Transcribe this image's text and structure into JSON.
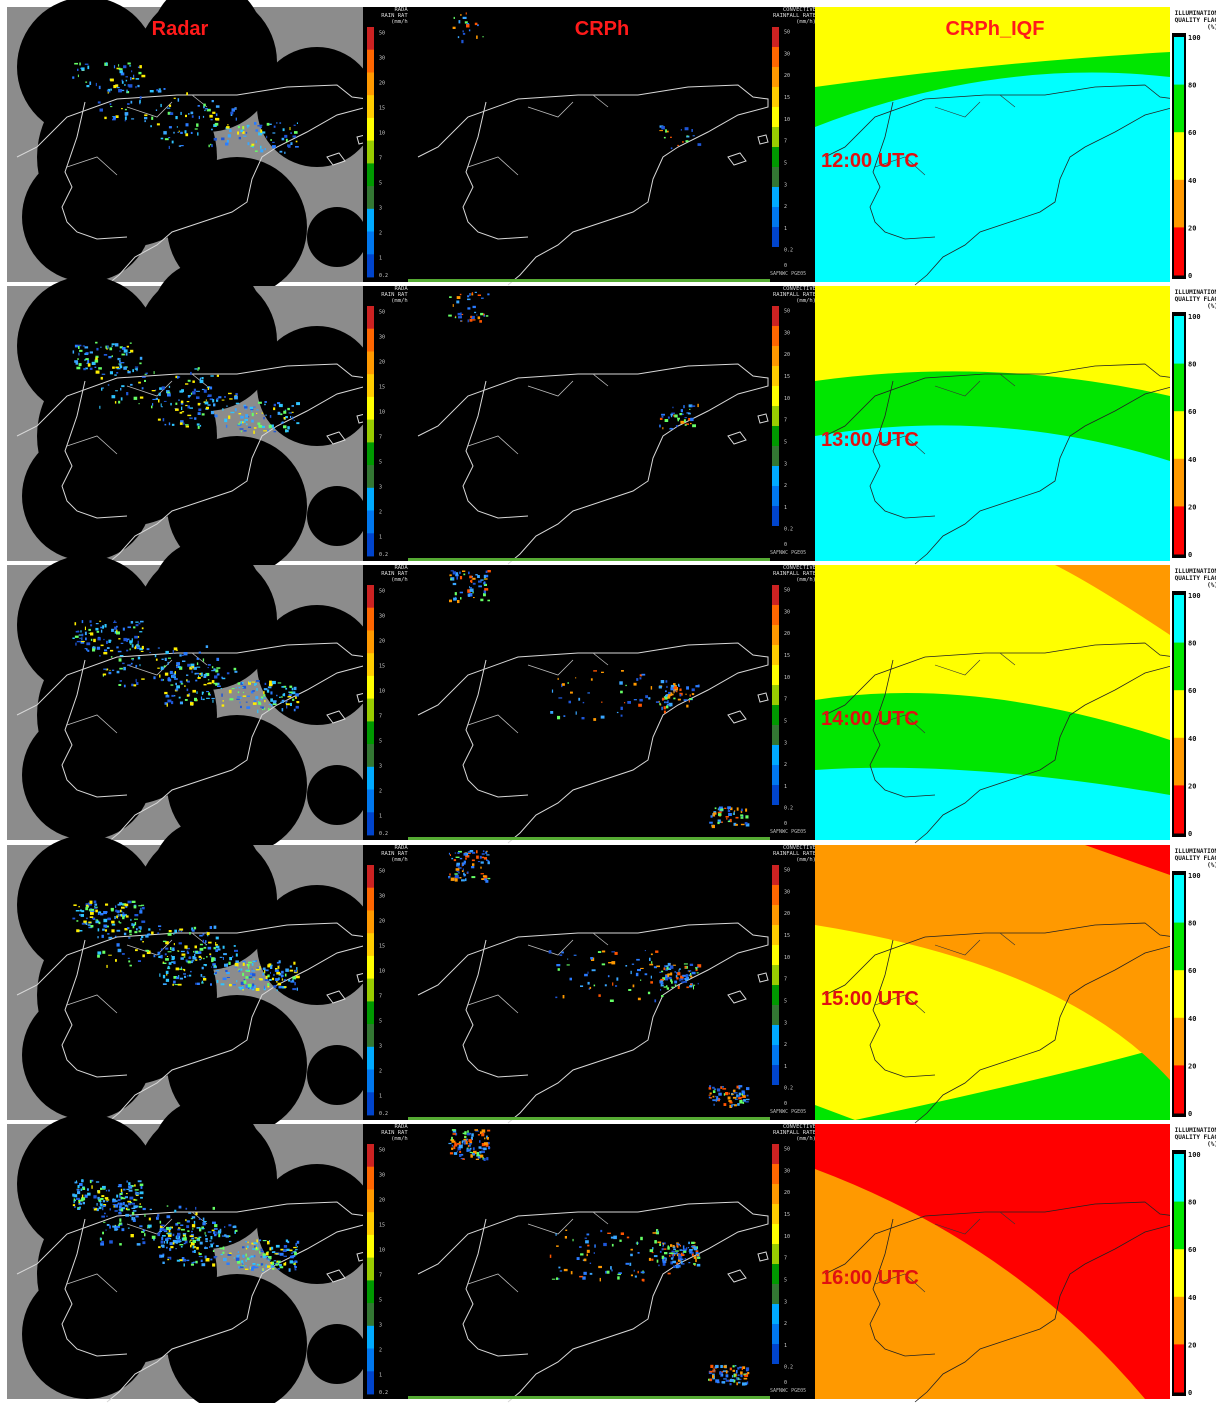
{
  "columns": [
    {
      "key": "radar",
      "title": "Radar"
    },
    {
      "key": "crph",
      "title": "CRPh"
    },
    {
      "key": "iqf",
      "title": "CRPh_IQF"
    }
  ],
  "rows": [
    {
      "time": "12:00 UTC",
      "iqf_bands": [
        "yellow",
        "green",
        "cyan"
      ]
    },
    {
      "time": "13:00 UTC",
      "iqf_bands": [
        "yellow",
        "green",
        "cyan"
      ]
    },
    {
      "time": "14:00 UTC",
      "iqf_bands": [
        "orange",
        "yellow",
        "green",
        "cyan"
      ]
    },
    {
      "time": "15:00 UTC",
      "iqf_bands": [
        "red",
        "orange",
        "yellow",
        "green"
      ]
    },
    {
      "time": "16:00 UTC",
      "iqf_bands": [
        "red",
        "orange"
      ]
    }
  ],
  "legends": {
    "radar": {
      "title": [
        "RADAR",
        "RAIN RATE",
        "(mm/h)"
      ],
      "ticks": [
        "50",
        "30",
        "20",
        "15",
        "10",
        "7",
        "5",
        "3",
        "2",
        "1",
        "0.2"
      ]
    },
    "crph": {
      "title": [
        "CONVECTIVE",
        "RAINFALL RATE",
        "(mm/h)"
      ],
      "ticks": [
        "50",
        "30",
        "20",
        "15",
        "10",
        "7",
        "5",
        "3",
        "2",
        "1",
        "0.2",
        "0"
      ],
      "footer": "SAFNWC PGE05"
    },
    "iqf": {
      "title": [
        "ILLUMINATION",
        "QUALITY FLAG",
        "(%)"
      ],
      "ticks": [
        "100",
        "80",
        "60",
        "40",
        "20",
        "0"
      ]
    }
  },
  "colors": {
    "rain_scale": [
      "#cc2222",
      "#ff6600",
      "#ff9900",
      "#ffcc00",
      "#ffff00",
      "#99cc00",
      "#009900",
      "#337733",
      "#00aaff",
      "#0077ee",
      "#0044cc"
    ],
    "iqf": {
      "cyan": "#00ffff",
      "green": "#00e600",
      "yellow": "#ffff00",
      "orange": "#ff9900",
      "red": "#ff0000"
    },
    "title_red": "#ff1a1a",
    "radar_mask": "#8c8c8c"
  }
}
